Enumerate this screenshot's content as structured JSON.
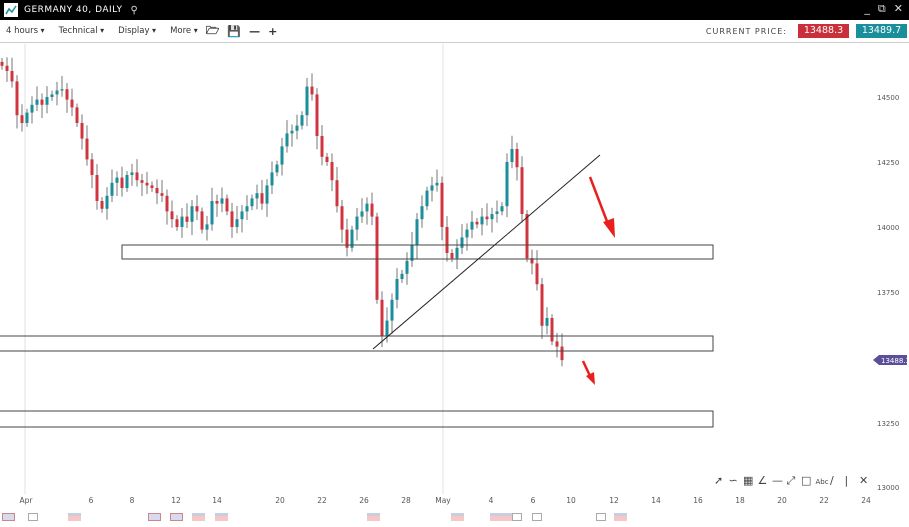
{
  "window": {
    "title": "GERMANY 40, DAILY",
    "search_icon": "magnifier-icon"
  },
  "toolbar": {
    "timeframe": "4 hours",
    "technical": "Technical",
    "display": "Display",
    "more": "More",
    "current_price_label": "CURRENT PRICE:",
    "sell_price": "13488.3",
    "buy_price": "13489.7"
  },
  "colors": {
    "up": "#1a8e9a",
    "down": "#d0343e",
    "sell": "#c9303a",
    "buy": "#1a8e9a",
    "arrow": "#e8201c",
    "price_tag": "#5b4f9a"
  },
  "chart": {
    "price_labels": [
      "14500",
      "14250",
      "14000",
      "13750",
      "13250",
      "13000"
    ],
    "current_price_tag": "13488.3",
    "date_labels": [
      "Apr",
      "6",
      "8",
      "12",
      "14",
      "20",
      "22",
      "26",
      "28",
      "May",
      "4",
      "6",
      "10",
      "12",
      "14",
      "16",
      "18",
      "20",
      "22",
      "24"
    ],
    "closes": [
      14620,
      14600,
      14560,
      14430,
      14400,
      14440,
      14470,
      14490,
      14470,
      14500,
      14510,
      14525,
      14530,
      14490,
      14460,
      14400,
      14340,
      14260,
      14200,
      14100,
      14070,
      14120,
      14170,
      14190,
      14150,
      14200,
      14210,
      14180,
      14170,
      14160,
      14150,
      14130,
      14120,
      14060,
      14030,
      14000,
      14040,
      14020,
      14080,
      14060,
      13990,
      14010,
      14100,
      14090,
      14110,
      14060,
      14000,
      14030,
      14060,
      14080,
      14110,
      14130,
      14090,
      14160,
      14210,
      14240,
      14310,
      14360,
      14370,
      14390,
      14430,
      14540,
      14510,
      14350,
      14270,
      14250,
      14180,
      14080,
      13990,
      13920,
      13990,
      14040,
      14060,
      14090,
      14040,
      13720,
      13580,
      13640,
      13720,
      13800,
      13820,
      13870,
      13930,
      14030,
      14080,
      14140,
      14160,
      14170,
      14000,
      13900,
      13880,
      13920,
      13960,
      13990,
      14020,
      14010,
      14040,
      14030,
      14050,
      14060,
      14080,
      14250,
      14300,
      14230,
      14050,
      13880,
      13860,
      13780,
      13620,
      13650,
      13560,
      13540,
      13488
    ],
    "drawing_tools": [
      "cursor-icon",
      "curve-icon",
      "fibonacci-icon",
      "fan-icon",
      "horizontal-line-icon",
      "trend-line-icon",
      "rectangle-icon",
      "text-icon",
      "line-icon",
      "separator",
      "delete-icon"
    ],
    "text_tool": "Abc"
  }
}
